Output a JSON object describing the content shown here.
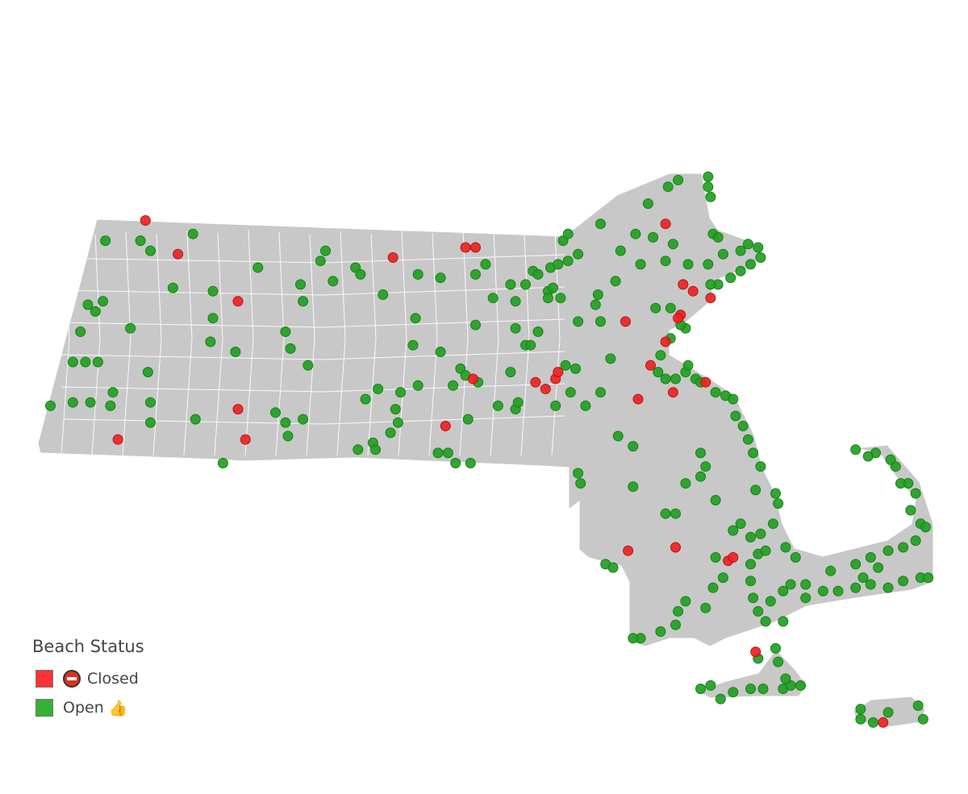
{
  "legend": {
    "title": "Beach Status",
    "items": [
      {
        "label": "Closed",
        "color": "#ff3333",
        "icon": "no-entry-icon"
      },
      {
        "label": "Open",
        "color": "#33b233",
        "icon": "thumbs-up-icon"
      }
    ]
  },
  "colors": {
    "land": "#c8c8c8",
    "borders": "#ffffff",
    "closed": "#ee2222",
    "open": "#22a022"
  },
  "beaches": [
    [
      -73.07,
      42.75,
      "closed"
    ],
    [
      -72.94,
      42.65,
      "closed"
    ],
    [
      -72.7,
      42.51,
      "closed"
    ],
    [
      -72.7,
      42.19,
      "closed"
    ],
    [
      -72.67,
      42.1,
      "closed"
    ],
    [
      -73.18,
      42.1,
      "closed"
    ],
    [
      -72.08,
      42.64,
      "closed"
    ],
    [
      -71.79,
      42.67,
      "closed"
    ],
    [
      -71.75,
      42.67,
      "closed"
    ],
    [
      -71.87,
      42.14,
      "closed"
    ],
    [
      -71.76,
      42.28,
      "closed"
    ],
    [
      -71.51,
      42.27,
      "closed"
    ],
    [
      -71.47,
      42.25,
      "closed"
    ],
    [
      -71.43,
      42.28,
      "closed"
    ],
    [
      -71.42,
      42.3,
      "closed"
    ],
    [
      -71.15,
      42.45,
      "closed"
    ],
    [
      -71.1,
      42.22,
      "closed"
    ],
    [
      -70.99,
      42.74,
      "closed"
    ],
    [
      -70.92,
      42.56,
      "closed"
    ],
    [
      -70.88,
      42.54,
      "closed"
    ],
    [
      -70.81,
      42.52,
      "closed"
    ],
    [
      -70.93,
      42.47,
      "closed"
    ],
    [
      -70.94,
      42.46,
      "closed"
    ],
    [
      -70.99,
      42.39,
      "closed"
    ],
    [
      -71.05,
      42.32,
      "closed"
    ],
    [
      -70.96,
      42.24,
      "closed"
    ],
    [
      -70.83,
      42.27,
      "closed"
    ],
    [
      -71.14,
      41.77,
      "closed"
    ],
    [
      -70.95,
      41.78,
      "closed"
    ],
    [
      -70.74,
      41.74,
      "closed"
    ],
    [
      -70.72,
      41.75,
      "closed"
    ],
    [
      -70.63,
      41.47,
      "closed"
    ],
    [
      -70.12,
      41.26,
      "closed"
    ],
    [
      -73.23,
      42.69,
      "open"
    ],
    [
      -73.09,
      42.69,
      "open"
    ],
    [
      -73.05,
      42.66,
      "open"
    ],
    [
      -72.88,
      42.71,
      "open"
    ],
    [
      -72.96,
      42.55,
      "open"
    ],
    [
      -72.8,
      42.54,
      "open"
    ],
    [
      -72.8,
      42.46,
      "open"
    ],
    [
      -73.3,
      42.5,
      "open"
    ],
    [
      -73.27,
      42.48,
      "open"
    ],
    [
      -73.24,
      42.51,
      "open"
    ],
    [
      -73.33,
      42.42,
      "open"
    ],
    [
      -73.13,
      42.43,
      "open"
    ],
    [
      -73.36,
      42.33,
      "open"
    ],
    [
      -73.31,
      42.33,
      "open"
    ],
    [
      -73.26,
      42.33,
      "open"
    ],
    [
      -73.06,
      42.3,
      "open"
    ],
    [
      -72.81,
      42.39,
      "open"
    ],
    [
      -72.71,
      42.36,
      "open"
    ],
    [
      -73.2,
      42.24,
      "open"
    ],
    [
      -73.45,
      42.2,
      "open"
    ],
    [
      -73.36,
      42.21,
      "open"
    ],
    [
      -73.29,
      42.21,
      "open"
    ],
    [
      -73.21,
      42.2,
      "open"
    ],
    [
      -73.05,
      42.21,
      "open"
    ],
    [
      -73.05,
      42.15,
      "open"
    ],
    [
      -72.87,
      42.16,
      "open"
    ],
    [
      -72.76,
      42.03,
      "open"
    ],
    [
      -72.62,
      42.61,
      "open"
    ],
    [
      -72.45,
      42.56,
      "open"
    ],
    [
      -72.44,
      42.51,
      "open"
    ],
    [
      -72.51,
      42.42,
      "open"
    ],
    [
      -72.49,
      42.37,
      "open"
    ],
    [
      -72.42,
      42.32,
      "open"
    ],
    [
      -72.37,
      42.63,
      "open"
    ],
    [
      -72.35,
      42.66,
      "open"
    ],
    [
      -72.32,
      42.57,
      "open"
    ],
    [
      -72.23,
      42.61,
      "open"
    ],
    [
      -72.21,
      42.59,
      "open"
    ],
    [
      -72.12,
      42.53,
      "open"
    ],
    [
      -71.98,
      42.59,
      "open"
    ],
    [
      -71.89,
      42.58,
      "open"
    ],
    [
      -71.99,
      42.46,
      "open"
    ],
    [
      -72.0,
      42.38,
      "open"
    ],
    [
      -72.55,
      42.18,
      "open"
    ],
    [
      -72.51,
      42.15,
      "open"
    ],
    [
      -72.5,
      42.11,
      "open"
    ],
    [
      -72.44,
      42.16,
      "open"
    ],
    [
      -72.22,
      42.07,
      "open"
    ],
    [
      -72.16,
      42.09,
      "open"
    ],
    [
      -72.15,
      42.07,
      "open"
    ],
    [
      -72.19,
      42.22,
      "open"
    ],
    [
      -72.14,
      42.25,
      "open"
    ],
    [
      -72.07,
      42.19,
      "open"
    ],
    [
      -72.06,
      42.15,
      "open"
    ],
    [
      -72.09,
      42.12,
      "open"
    ],
    [
      -72.05,
      42.24,
      "open"
    ],
    [
      -71.98,
      42.26,
      "open"
    ],
    [
      -71.89,
      42.36,
      "open"
    ],
    [
      -71.9,
      42.06,
      "open"
    ],
    [
      -71.86,
      42.06,
      "open"
    ],
    [
      -71.83,
      42.03,
      "open"
    ],
    [
      -71.77,
      42.03,
      "open"
    ],
    [
      -71.81,
      42.31,
      "open"
    ],
    [
      -71.79,
      42.29,
      "open"
    ],
    [
      -71.74,
      42.27,
      "open"
    ],
    [
      -71.84,
      42.26,
      "open"
    ],
    [
      -71.78,
      42.16,
      "open"
    ],
    [
      -71.75,
      42.59,
      "open"
    ],
    [
      -71.71,
      42.62,
      "open"
    ],
    [
      -71.75,
      42.44,
      "open"
    ],
    [
      -71.68,
      42.52,
      "open"
    ],
    [
      -71.59,
      42.51,
      "open"
    ],
    [
      -71.61,
      42.56,
      "open"
    ],
    [
      -71.55,
      42.56,
      "open"
    ],
    [
      -71.52,
      42.6,
      "open"
    ],
    [
      -71.5,
      42.59,
      "open"
    ],
    [
      -71.45,
      42.61,
      "open"
    ],
    [
      -71.42,
      42.62,
      "open"
    ],
    [
      -71.46,
      42.54,
      "open"
    ],
    [
      -71.44,
      42.55,
      "open"
    ],
    [
      -71.41,
      42.52,
      "open"
    ],
    [
      -71.46,
      42.52,
      "open"
    ],
    [
      -71.4,
      42.69,
      "open"
    ],
    [
      -71.38,
      42.71,
      "open"
    ],
    [
      -71.34,
      42.65,
      "open"
    ],
    [
      -71.38,
      42.63,
      "open"
    ],
    [
      -71.25,
      42.74,
      "open"
    ],
    [
      -71.59,
      42.43,
      "open"
    ],
    [
      -71.5,
      42.42,
      "open"
    ],
    [
      -71.55,
      42.38,
      "open"
    ],
    [
      -71.53,
      42.38,
      "open"
    ],
    [
      -71.61,
      42.3,
      "open"
    ],
    [
      -71.59,
      42.19,
      "open"
    ],
    [
      -71.66,
      42.2,
      "open"
    ],
    [
      -71.58,
      42.21,
      "open"
    ],
    [
      -71.43,
      42.2,
      "open"
    ],
    [
      -71.37,
      42.24,
      "open"
    ],
    [
      -71.39,
      42.32,
      "open"
    ],
    [
      -71.35,
      42.31,
      "open"
    ],
    [
      -71.31,
      42.2,
      "open"
    ],
    [
      -71.26,
      42.53,
      "open"
    ],
    [
      -71.27,
      42.5,
      "open"
    ],
    [
      -71.19,
      42.57,
      "open"
    ],
    [
      -71.34,
      42.45,
      "open"
    ],
    [
      -71.25,
      42.45,
      "open"
    ],
    [
      -71.21,
      42.34,
      "open"
    ],
    [
      -71.25,
      42.24,
      "open"
    ],
    [
      -71.17,
      42.66,
      "open"
    ],
    [
      -71.11,
      42.71,
      "open"
    ],
    [
      -71.06,
      42.8,
      "open"
    ],
    [
      -71.04,
      42.7,
      "open"
    ],
    [
      -71.09,
      42.62,
      "open"
    ],
    [
      -70.99,
      42.63,
      "open"
    ],
    [
      -70.98,
      42.85,
      "open"
    ],
    [
      -70.94,
      42.87,
      "open"
    ],
    [
      -70.82,
      42.88,
      "open"
    ],
    [
      -70.82,
      42.85,
      "open"
    ],
    [
      -70.81,
      42.82,
      "open"
    ],
    [
      -70.8,
      42.71,
      "open"
    ],
    [
      -70.78,
      42.7,
      "open"
    ],
    [
      -70.76,
      42.65,
      "open"
    ],
    [
      -70.69,
      42.66,
      "open"
    ],
    [
      -70.66,
      42.68,
      "open"
    ],
    [
      -70.62,
      42.67,
      "open"
    ],
    [
      -70.61,
      42.64,
      "open"
    ],
    [
      -70.65,
      42.62,
      "open"
    ],
    [
      -70.69,
      42.6,
      "open"
    ],
    [
      -70.73,
      42.58,
      "open"
    ],
    [
      -70.78,
      42.56,
      "open"
    ],
    [
      -70.81,
      42.56,
      "open"
    ],
    [
      -70.82,
      42.62,
      "open"
    ],
    [
      -70.9,
      42.62,
      "open"
    ],
    [
      -70.96,
      42.68,
      "open"
    ],
    [
      -71.03,
      42.49,
      "open"
    ],
    [
      -70.97,
      42.49,
      "open"
    ],
    [
      -70.91,
      42.43,
      "open"
    ],
    [
      -70.93,
      42.44,
      "open"
    ],
    [
      -70.97,
      42.4,
      "open"
    ],
    [
      -71.01,
      42.35,
      "open"
    ],
    [
      -71.02,
      42.3,
      "open"
    ],
    [
      -70.99,
      42.28,
      "open"
    ],
    [
      -70.95,
      42.28,
      "open"
    ],
    [
      -70.91,
      42.3,
      "open"
    ],
    [
      -70.87,
      42.28,
      "open"
    ],
    [
      -70.9,
      42.32,
      "open"
    ],
    [
      -70.85,
      42.27,
      "open"
    ],
    [
      -70.79,
      42.24,
      "open"
    ],
    [
      -70.75,
      42.23,
      "open"
    ],
    [
      -70.72,
      42.22,
      "open"
    ],
    [
      -70.71,
      42.17,
      "open"
    ],
    [
      -70.68,
      42.14,
      "open"
    ],
    [
      -70.66,
      42.1,
      "open"
    ],
    [
      -70.64,
      42.06,
      "open"
    ],
    [
      -70.61,
      42.02,
      "open"
    ],
    [
      -70.63,
      41.95,
      "open"
    ],
    [
      -70.55,
      41.94,
      "open"
    ],
    [
      -70.54,
      41.91,
      "open"
    ],
    [
      -70.56,
      41.85,
      "open"
    ],
    [
      -70.61,
      41.82,
      "open"
    ],
    [
      -70.65,
      41.81,
      "open"
    ],
    [
      -70.62,
      41.76,
      "open"
    ],
    [
      -70.59,
      41.77,
      "open"
    ],
    [
      -71.18,
      42.11,
      "open"
    ],
    [
      -71.12,
      42.08,
      "open"
    ],
    [
      -71.12,
      41.96,
      "open"
    ],
    [
      -71.34,
      42.0,
      "open"
    ],
    [
      -71.33,
      41.97,
      "open"
    ],
    [
      -70.99,
      41.88,
      "open"
    ],
    [
      -70.95,
      41.88,
      "open"
    ],
    [
      -70.91,
      41.97,
      "open"
    ],
    [
      -70.85,
      42.06,
      "open"
    ],
    [
      -70.83,
      42.02,
      "open"
    ],
    [
      -70.85,
      41.99,
      "open"
    ],
    [
      -70.79,
      41.92,
      "open"
    ],
    [
      -70.69,
      41.85,
      "open"
    ],
    [
      -70.72,
      41.83,
      "open"
    ],
    [
      -70.79,
      41.75,
      "open"
    ],
    [
      -70.76,
      41.69,
      "open"
    ],
    [
      -70.8,
      41.66,
      "open"
    ],
    [
      -70.83,
      41.6,
      "open"
    ],
    [
      -70.91,
      41.62,
      "open"
    ],
    [
      -70.94,
      41.59,
      "open"
    ],
    [
      -70.95,
      41.55,
      "open"
    ],
    [
      -71.01,
      41.53,
      "open"
    ],
    [
      -71.09,
      41.51,
      "open"
    ],
    [
      -71.12,
      41.51,
      "open"
    ],
    [
      -71.23,
      41.73,
      "open"
    ],
    [
      -71.2,
      41.72,
      "open"
    ],
    [
      -70.65,
      41.73,
      "open"
    ],
    [
      -70.65,
      41.68,
      "open"
    ],
    [
      -70.64,
      41.63,
      "open"
    ],
    [
      -70.62,
      41.59,
      "open"
    ],
    [
      -70.59,
      41.56,
      "open"
    ],
    [
      -70.52,
      41.56,
      "open"
    ],
    [
      -70.57,
      41.62,
      "open"
    ],
    [
      -70.52,
      41.65,
      "open"
    ],
    [
      -70.49,
      41.67,
      "open"
    ],
    [
      -70.43,
      41.67,
      "open"
    ],
    [
      -70.36,
      41.65,
      "open"
    ],
    [
      -70.3,
      41.65,
      "open"
    ],
    [
      -70.23,
      41.66,
      "open"
    ],
    [
      -70.17,
      41.67,
      "open"
    ],
    [
      -70.1,
      41.66,
      "open"
    ],
    [
      -70.04,
      41.68,
      "open"
    ],
    [
      -69.97,
      41.69,
      "open"
    ],
    [
      -69.94,
      41.69,
      "open"
    ],
    [
      -70.23,
      41.73,
      "open"
    ],
    [
      -70.17,
      41.75,
      "open"
    ],
    [
      -70.1,
      41.77,
      "open"
    ],
    [
      -70.04,
      41.78,
      "open"
    ],
    [
      -69.99,
      41.8,
      "open"
    ],
    [
      -69.97,
      41.85,
      "open"
    ],
    [
      -69.95,
      41.84,
      "open"
    ],
    [
      -70.01,
      41.89,
      "open"
    ],
    [
      -69.99,
      41.94,
      "open"
    ],
    [
      -70.02,
      41.97,
      "open"
    ],
    [
      -70.07,
      42.02,
      "open"
    ],
    [
      -70.09,
      42.04,
      "open"
    ],
    [
      -70.15,
      42.06,
      "open"
    ],
    [
      -70.23,
      42.07,
      "open"
    ],
    [
      -70.18,
      42.05,
      "open"
    ],
    [
      -70.05,
      41.97,
      "open"
    ],
    [
      -70.43,
      41.63,
      "open"
    ],
    [
      -70.47,
      41.75,
      "open"
    ],
    [
      -70.51,
      41.78,
      "open"
    ],
    [
      -70.33,
      41.71,
      "open"
    ],
    [
      -70.2,
      41.69,
      "open"
    ],
    [
      -70.14,
      41.72,
      "open"
    ],
    [
      -70.85,
      41.36,
      "open"
    ],
    [
      -70.81,
      41.37,
      "open"
    ],
    [
      -70.77,
      41.33,
      "open"
    ],
    [
      -70.72,
      41.35,
      "open"
    ],
    [
      -70.65,
      41.36,
      "open"
    ],
    [
      -70.6,
      41.36,
      "open"
    ],
    [
      -70.52,
      41.36,
      "open"
    ],
    [
      -70.49,
      41.37,
      "open"
    ],
    [
      -70.45,
      41.37,
      "open"
    ],
    [
      -70.55,
      41.48,
      "open"
    ],
    [
      -70.54,
      41.44,
      "open"
    ],
    [
      -70.51,
      41.39,
      "open"
    ],
    [
      -70.62,
      41.45,
      "open"
    ],
    [
      -70.21,
      41.3,
      "open"
    ],
    [
      -70.16,
      41.26,
      "open"
    ],
    [
      -70.1,
      41.29,
      "open"
    ],
    [
      -69.98,
      41.31,
      "open"
    ],
    [
      -69.96,
      41.27,
      "open"
    ],
    [
      -70.21,
      41.27,
      "open"
    ]
  ]
}
